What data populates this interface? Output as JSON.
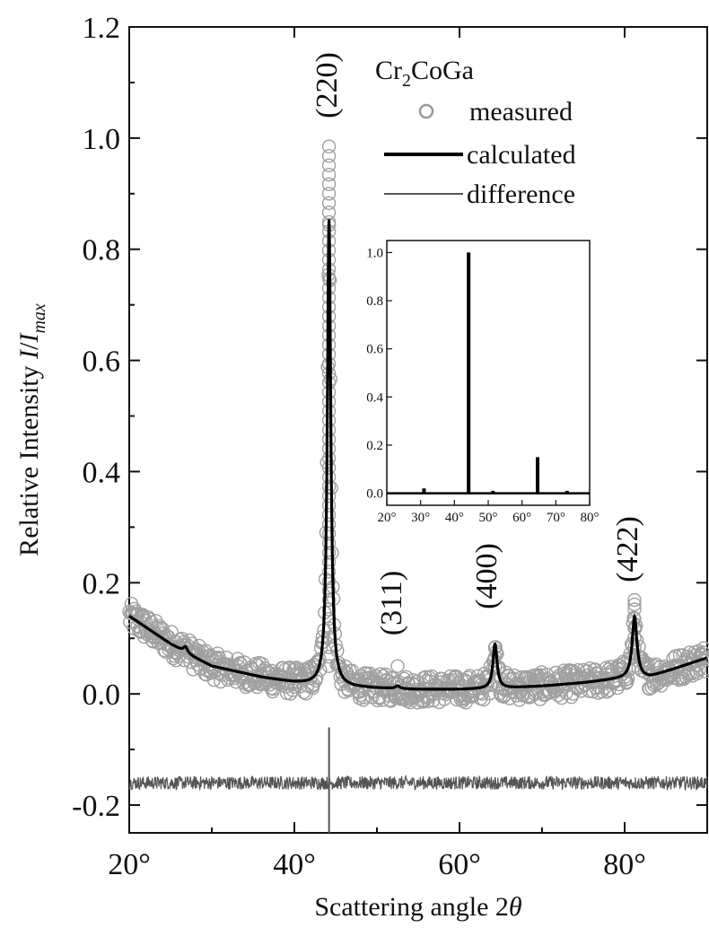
{
  "chart_data": {
    "type": "line",
    "xlabel": "Scattering angle 2θ",
    "ylabel": "Relative Intensity I/I_max",
    "xlim": [
      20,
      90
    ],
    "ylim": [
      -0.25,
      1.2
    ],
    "x_ticks": [
      {
        "value": 20,
        "label": "20°"
      },
      {
        "value": 40,
        "label": "40°"
      },
      {
        "value": 60,
        "label": "60°"
      },
      {
        "value": 80,
        "label": "80°"
      }
    ],
    "y_ticks": [
      {
        "value": -0.2,
        "label": "-0.2"
      },
      {
        "value": 0.0,
        "label": "0.0"
      },
      {
        "value": 0.2,
        "label": "0.2"
      },
      {
        "value": 0.4,
        "label": "0.4"
      },
      {
        "value": 0.6,
        "label": "0.6"
      },
      {
        "value": 0.8,
        "label": "0.8"
      },
      {
        "value": 1.0,
        "label": "1.0"
      },
      {
        "value": 1.2,
        "label": "1.2"
      }
    ],
    "legend": {
      "title": "Cr2CoGa",
      "title_main": "Cr",
      "title_sub": "2",
      "title_rest": "CoGa",
      "position": "top-right",
      "entries": [
        {
          "name": "measured",
          "marker": "circle"
        },
        {
          "name": "calculated",
          "marker": "thick-line"
        },
        {
          "name": "difference",
          "marker": "thin-line"
        }
      ]
    },
    "peaks": [
      {
        "label": "(220)",
        "x": 44.2,
        "intensity": 1.0
      },
      {
        "label": "(311)",
        "x": 52.5,
        "intensity": 0.05
      },
      {
        "label": "(400)",
        "x": 64.3,
        "intensity": 0.1
      },
      {
        "label": "(422)",
        "x": 81.2,
        "intensity": 0.18
      }
    ],
    "calculated_background": {
      "x": [
        20,
        22,
        25,
        28,
        30,
        33,
        36,
        40,
        43,
        46,
        50,
        55,
        60,
        65,
        70,
        75,
        78,
        80,
        83,
        86,
        90
      ],
      "y": [
        0.14,
        0.12,
        0.09,
        0.065,
        0.05,
        0.04,
        0.03,
        0.02,
        0.015,
        0.012,
        0.01,
        0.008,
        0.008,
        0.01,
        0.014,
        0.02,
        0.025,
        0.028,
        0.03,
        0.045,
        0.065
      ]
    },
    "calculated_peaks": [
      {
        "x": 44.2,
        "height": 0.84,
        "width": 0.25
      },
      {
        "x": 64.3,
        "height": 0.08,
        "width": 0.3
      },
      {
        "x": 81.2,
        "height": 0.11,
        "width": 0.35
      },
      {
        "x": 26.8,
        "height": 0.01,
        "width": 0.3
      },
      {
        "x": 52.5,
        "height": 0.005,
        "width": 0.3
      }
    ],
    "difference_series": {
      "offset": -0.16,
      "noise": 0.012,
      "spike_x": 44.2,
      "spike_range": [
        -0.25,
        -0.06
      ]
    },
    "inset": {
      "type": "bar",
      "xlim": [
        20,
        80
      ],
      "ylim": [
        -0.05,
        1.05
      ],
      "x_ticks": [
        "20°",
        "30°",
        "40°",
        "50°",
        "60°",
        "70°",
        "80°"
      ],
      "y_ticks": [
        "0.0",
        "0.2",
        "0.4",
        "0.6",
        "0.8",
        "1.0"
      ],
      "peaks": [
        {
          "x": 31.0,
          "value": 0.02
        },
        {
          "x": 44.2,
          "value": 1.0
        },
        {
          "x": 51.4,
          "value": 0.01
        },
        {
          "x": 64.6,
          "value": 0.15
        },
        {
          "x": 73.3,
          "value": 0.01
        }
      ]
    }
  }
}
